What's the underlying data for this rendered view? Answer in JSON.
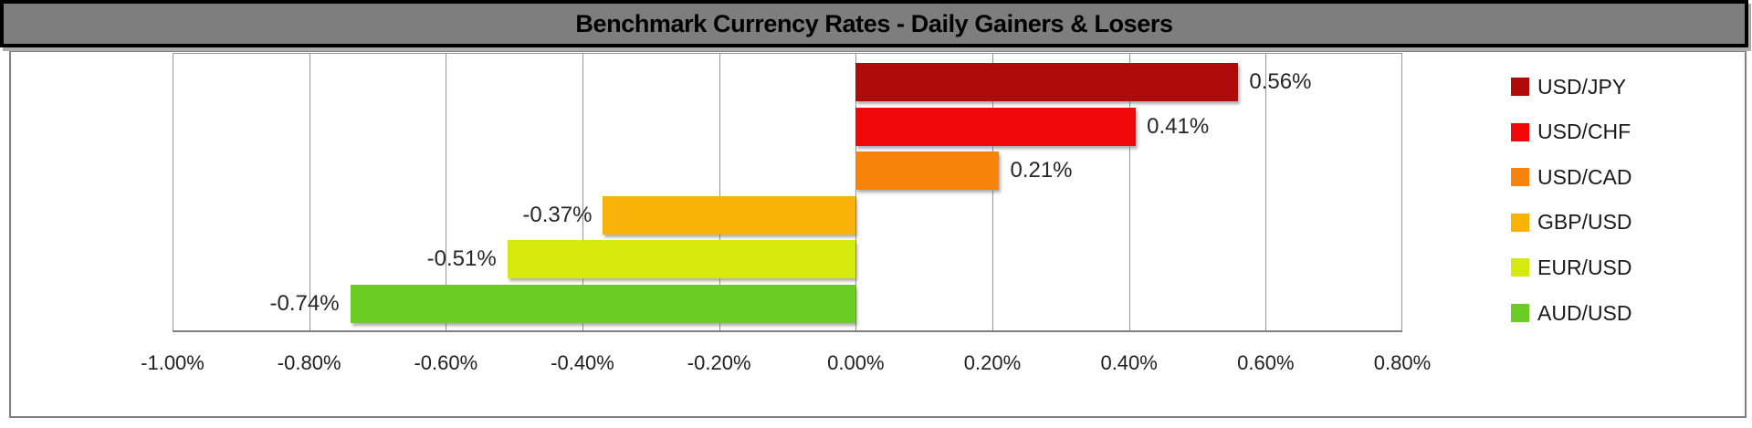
{
  "title": "Benchmark Currency Rates - Daily Gainers & Losers",
  "chart_data": {
    "type": "bar",
    "orientation": "horizontal",
    "title": "Benchmark Currency Rates - Daily Gainers & Losers",
    "categories": [
      "USD/JPY",
      "USD/CHF",
      "USD/CAD",
      "GBP/USD",
      "EUR/USD",
      "AUD/USD"
    ],
    "values": [
      0.56,
      0.41,
      0.21,
      -0.37,
      -0.51,
      -0.74
    ],
    "value_labels": [
      "0.56%",
      "0.41%",
      "0.21%",
      "-0.37%",
      "-0.51%",
      "-0.74%"
    ],
    "series_colors": [
      "#B00B0B",
      "#F00707",
      "#F8830B",
      "#F9B208",
      "#D5E90F",
      "#6BCC24"
    ],
    "x_ticks": [
      -1.0,
      -0.8,
      -0.6,
      -0.4,
      -0.2,
      0.0,
      0.2,
      0.4,
      0.6,
      0.8
    ],
    "x_tick_labels": [
      "-1.00%",
      "-0.80%",
      "-0.60%",
      "-0.40%",
      "-0.20%",
      "0.00%",
      "0.20%",
      "0.40%",
      "0.60%",
      "0.80%"
    ],
    "xlim": [
      -1.0,
      0.8
    ],
    "grid": true,
    "legend_position": "right"
  },
  "style": {
    "banner_bg": "#7E7E7E",
    "banner_border": "#000000",
    "grid_color": "#969696",
    "axis_color": "#7F7F7F",
    "box_border": "#7F7F7F",
    "label_color": "#262626"
  }
}
